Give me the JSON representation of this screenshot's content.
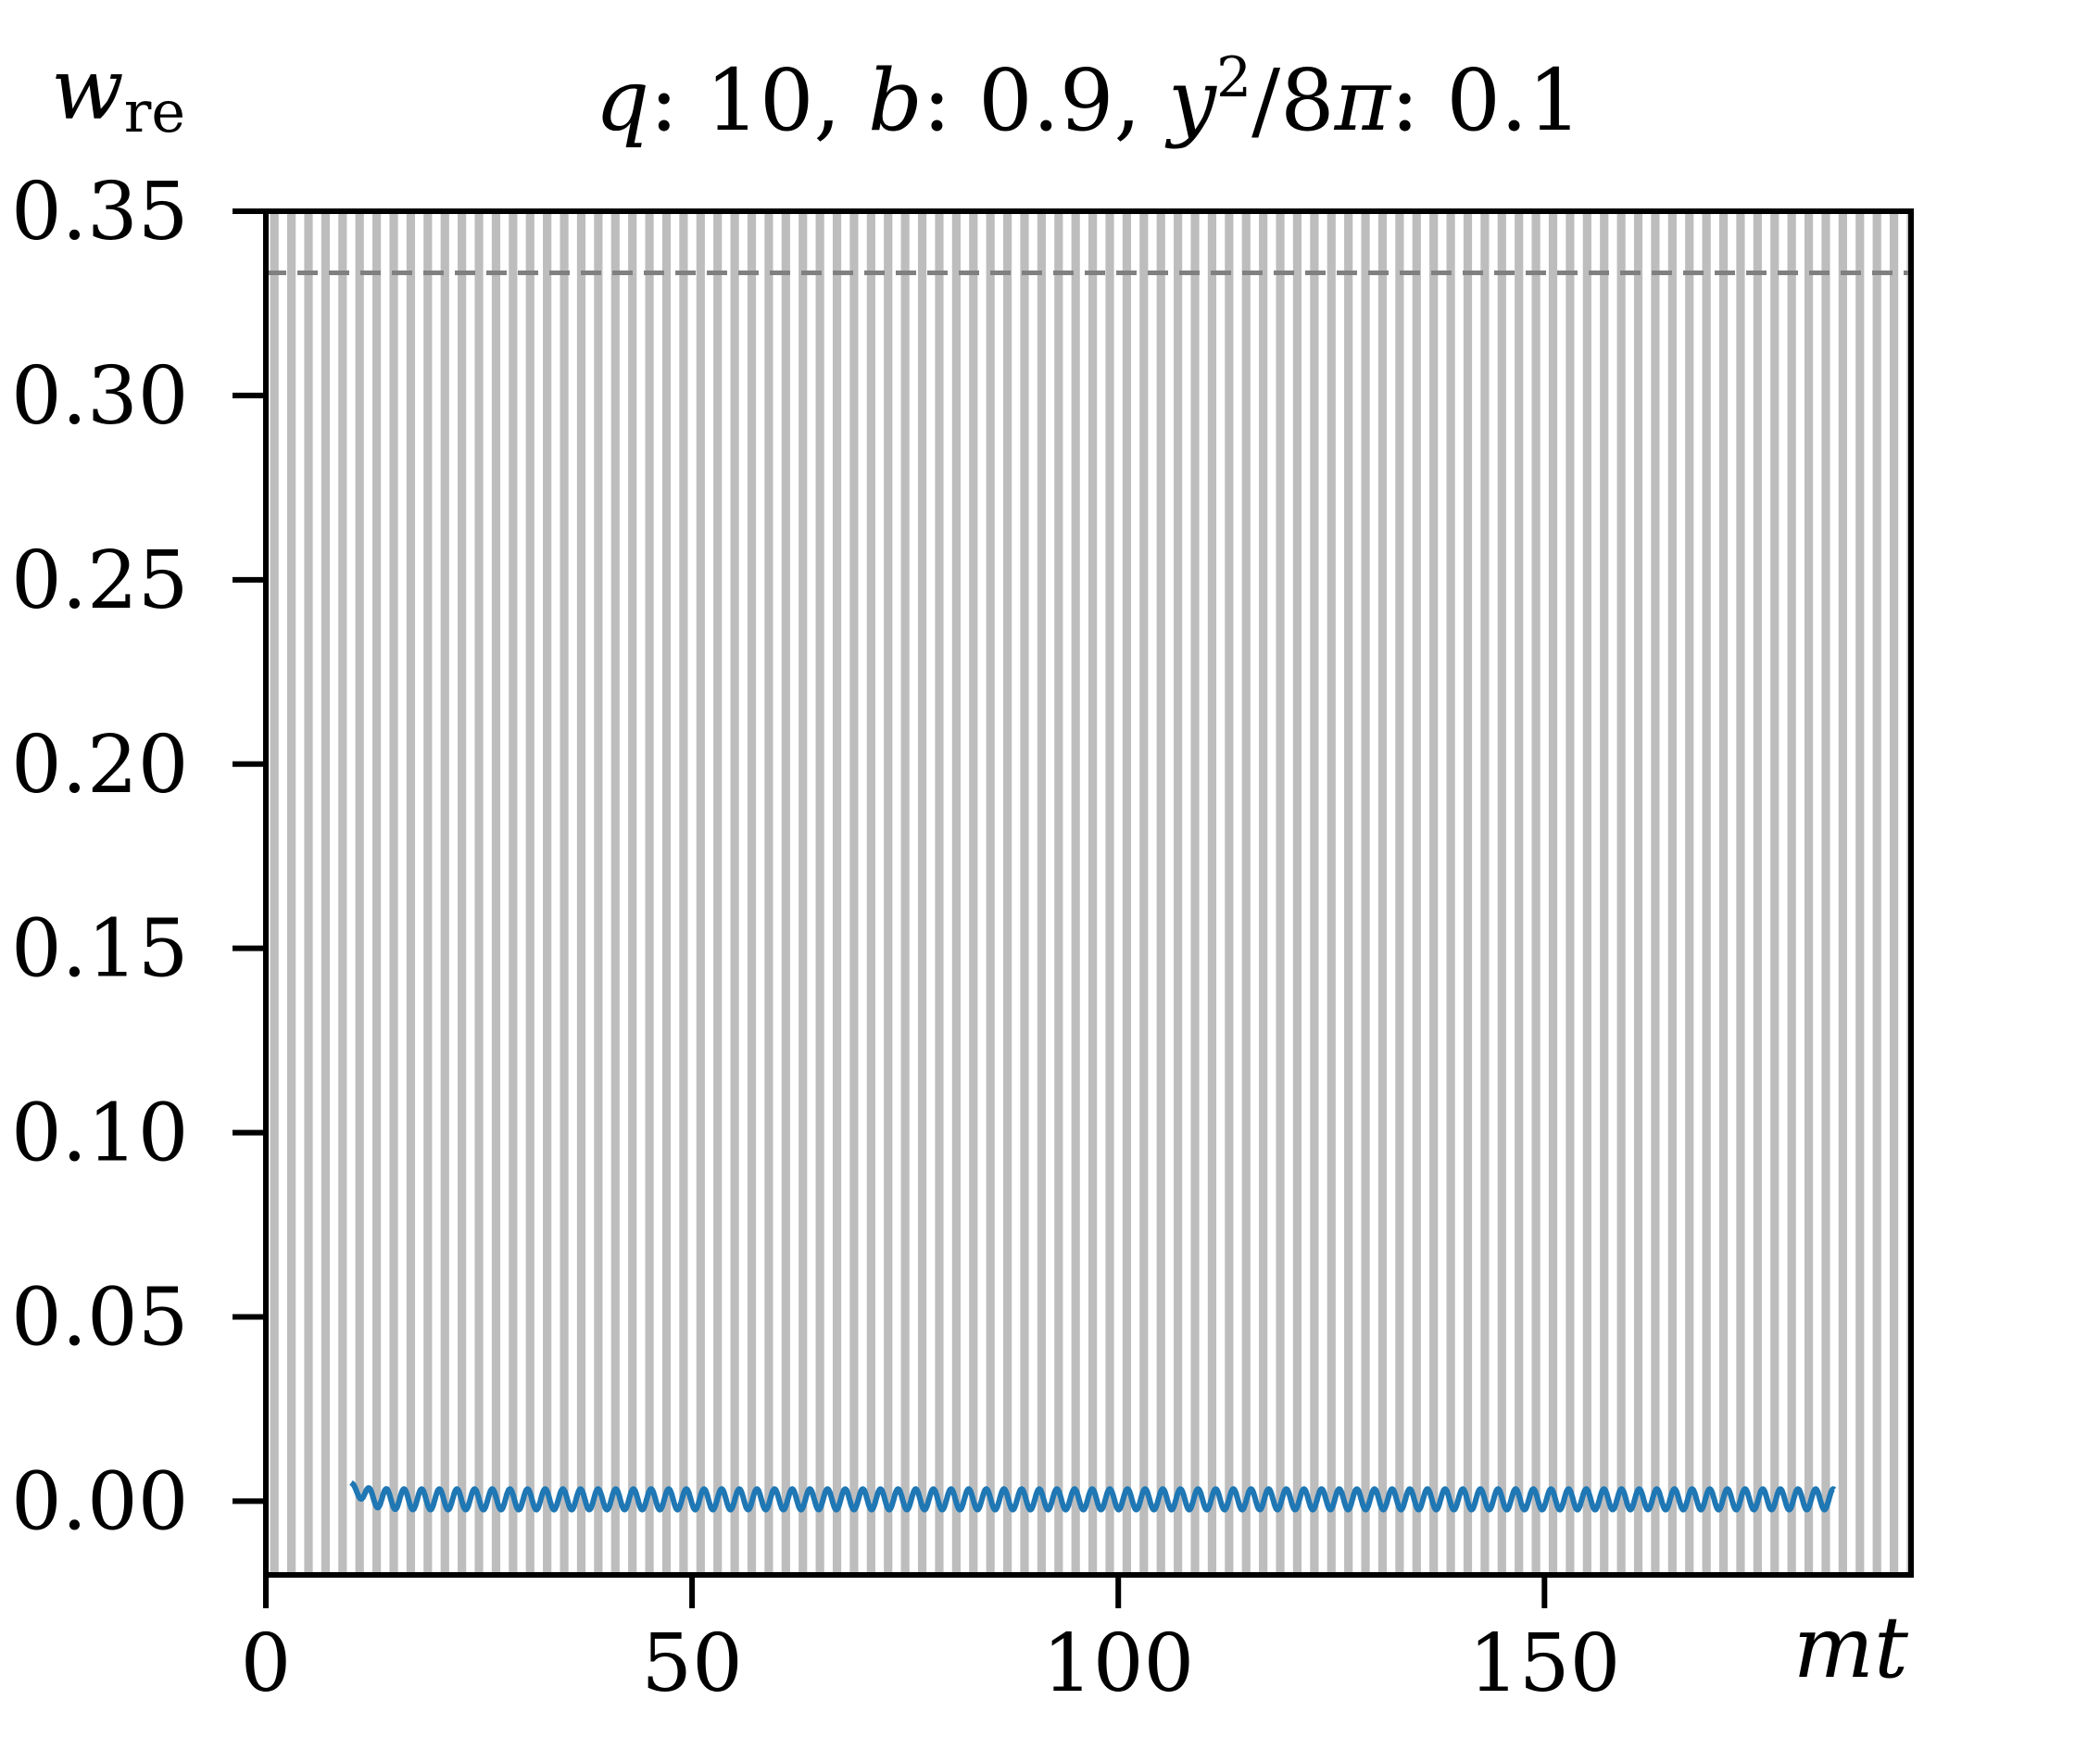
{
  "chart_data": {
    "type": "line",
    "title_parts": {
      "q_sym": "q",
      "q_val": ": 10, ",
      "b_sym": "b",
      "b_val": ": 0.9, ",
      "y_sym": "y",
      "y_sup": "2",
      "y_rest": "/8",
      "pi": "π",
      "y_val": ": 0.1"
    },
    "xlabel": "mt",
    "ylabel_main": "w",
    "ylabel_sub": "re",
    "xlim": [
      0,
      193
    ],
    "ylim": [
      -0.02,
      0.35
    ],
    "xticks": [
      0,
      50,
      100,
      150
    ],
    "xtick_labels": [
      "0",
      "50",
      "100",
      "150"
    ],
    "yticks": [
      0.0,
      0.05,
      0.1,
      0.15,
      0.2,
      0.25,
      0.3,
      0.35
    ],
    "ytick_labels": [
      "0.00",
      "0.05",
      "0.10",
      "0.15",
      "0.20",
      "0.25",
      "0.30",
      "0.35"
    ],
    "reference_line": {
      "y": 0.3333,
      "style": "dashed",
      "color": "#808080"
    },
    "background_bands": {
      "period": 2.0,
      "color": "#bdbdbd"
    },
    "series": [
      {
        "color": "#1f77b4",
        "x_start": 10,
        "x_end": 184,
        "mean": 0.0005,
        "amplitude": 0.0028,
        "period": 2.07,
        "initial_value": 0.005
      }
    ]
  }
}
